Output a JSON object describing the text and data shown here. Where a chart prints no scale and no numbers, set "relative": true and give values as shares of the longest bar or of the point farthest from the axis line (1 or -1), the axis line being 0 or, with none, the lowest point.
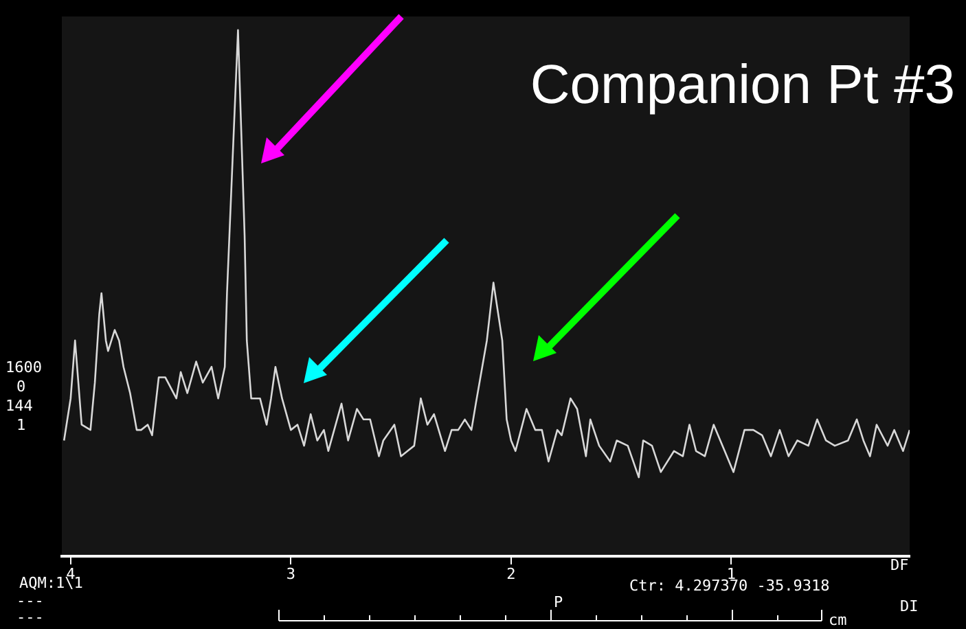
{
  "chart_data": {
    "type": "line",
    "title": "Companion Pt #3",
    "relative": true,
    "color": "#d8d8d8",
    "x": [
      4.03,
      4.0,
      3.98,
      3.95,
      3.91,
      3.89,
      3.87,
      3.86,
      3.84,
      3.83,
      3.8,
      3.78,
      3.76,
      3.73,
      3.7,
      3.68,
      3.65,
      3.63,
      3.6,
      3.57,
      3.52,
      3.5,
      3.47,
      3.43,
      3.4,
      3.36,
      3.33,
      3.3,
      3.29,
      3.24,
      3.21,
      3.2,
      3.18,
      3.14,
      3.11,
      3.09,
      3.07,
      3.04,
      3.0,
      2.97,
      2.94,
      2.91,
      2.88,
      2.85,
      2.83,
      2.77,
      2.74,
      2.7,
      2.67,
      2.64,
      2.6,
      2.58,
      2.53,
      2.5,
      2.47,
      2.44,
      2.41,
      2.38,
      2.35,
      2.3,
      2.27,
      2.24,
      2.21,
      2.18,
      2.16,
      2.11,
      2.08,
      2.04,
      2.02,
      2.0,
      1.98,
      1.93,
      1.89,
      1.86,
      1.83,
      1.79,
      1.77,
      1.73,
      1.7,
      1.66,
      1.64,
      1.6,
      1.55,
      1.52,
      1.47,
      1.42,
      1.4,
      1.36,
      1.32,
      1.26,
      1.22,
      1.19,
      1.16,
      1.12,
      1.08,
      1.03,
      0.99,
      0.94,
      0.9,
      0.86,
      0.82,
      0.78,
      0.74,
      0.7,
      0.65,
      0.61,
      0.57,
      0.53,
      0.47,
      0.43,
      0.4,
      0.37,
      0.34,
      0.29,
      0.26,
      0.22,
      0.19
    ],
    "values": [
      0.22,
      0.3,
      0.41,
      0.25,
      0.24,
      0.33,
      0.46,
      0.5,
      0.41,
      0.39,
      0.43,
      0.41,
      0.36,
      0.31,
      0.24,
      0.24,
      0.25,
      0.23,
      0.34,
      0.34,
      0.3,
      0.35,
      0.31,
      0.37,
      0.33,
      0.36,
      0.3,
      0.36,
      0.5,
      1,
      0.61,
      0.41,
      0.3,
      0.3,
      0.25,
      0.3,
      0.36,
      0.3,
      0.24,
      0.25,
      0.21,
      0.27,
      0.22,
      0.24,
      0.2,
      0.29,
      0.22,
      0.28,
      0.26,
      0.26,
      0.19,
      0.22,
      0.25,
      0.19,
      0.2,
      0.21,
      0.3,
      0.25,
      0.27,
      0.2,
      0.24,
      0.24,
      0.26,
      0.24,
      0.29,
      0.41,
      0.52,
      0.41,
      0.26,
      0.22,
      0.2,
      0.28,
      0.24,
      0.24,
      0.18,
      0.24,
      0.23,
      0.3,
      0.28,
      0.19,
      0.26,
      0.21,
      0.18,
      0.22,
      0.21,
      0.15,
      0.22,
      0.21,
      0.16,
      0.2,
      0.19,
      0.25,
      0.2,
      0.19,
      0.25,
      0.2,
      0.16,
      0.24,
      0.24,
      0.23,
      0.19,
      0.24,
      0.19,
      0.22,
      0.21,
      0.26,
      0.22,
      0.21,
      0.22,
      0.26,
      0.22,
      0.19,
      0.25,
      0.21,
      0.24,
      0.2,
      0.24
    ],
    "xlim": [
      4.04,
      0.19
    ],
    "xticks": [
      4,
      3,
      2,
      1
    ],
    "grid": false,
    "legend": false,
    "marker": "none",
    "line_style": "solid",
    "annotations": [
      "1600",
      "0",
      "144",
      "1",
      "AQM:1\\1",
      "---",
      "---",
      "Ctr: 4.297370 -35.9318",
      "DF",
      "DI",
      "P",
      "cm"
    ]
  }
}
